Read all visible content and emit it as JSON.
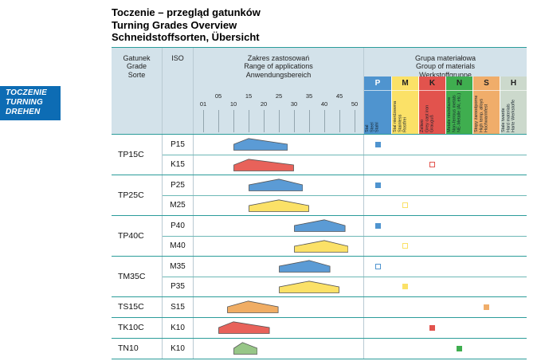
{
  "title_lines": [
    "Toczenie – przegląd gatunków",
    "Turning Grades Overview",
    "Schneidstoffsorten, Übersicht"
  ],
  "side_tab": {
    "lines": [
      "TOCZENIE",
      "TURNING",
      "DREHEN"
    ],
    "bg": "#0d6cb4"
  },
  "header": {
    "grade_lines": [
      "Gatunek",
      "Grade",
      "Sorte"
    ],
    "iso": "ISO",
    "range_lines": [
      "Zakres zastosowań",
      "Range of applications",
      "Anwendungsbereich"
    ],
    "materials_lines": [
      "Grupa materiałowa",
      "Group of materials",
      "Werkstoffgruppe"
    ]
  },
  "scale": {
    "values": [
      1,
      5,
      10,
      15,
      20,
      25,
      30,
      35,
      40,
      45,
      50
    ],
    "labels": [
      "01",
      "05",
      "10",
      "15",
      "20",
      "25",
      "30",
      "35",
      "40",
      "45",
      "50"
    ]
  },
  "material_columns": [
    {
      "code": "P",
      "color": "#4f94cf",
      "letter_color": "#ffffff",
      "label_lines": [
        "Stal",
        "Steel",
        "Stahl"
      ]
    },
    {
      "code": "M",
      "color": "#fbe167",
      "letter_color": "#222222",
      "label_lines": [
        "Stal nierdzewna",
        "Stainless",
        "Rostfrei"
      ]
    },
    {
      "code": "K",
      "color": "#e2534d",
      "letter_color": "#222222",
      "label_lines": [
        "Żeliwo",
        "Grey cast iron",
        "Grauguß"
      ]
    },
    {
      "code": "N",
      "color": "#3fae4f",
      "letter_color": "#222222",
      "label_lines": [
        "Metale nieżelazne",
        "Non-ferrous metals",
        "NE-Metalle (Al, etc.)"
      ]
    },
    {
      "code": "S",
      "color": "#f0ad6a",
      "letter_color": "#222222",
      "label_lines": [
        "Stopy żaroodporne",
        "High temp. alloys",
        "Hochwarmfest"
      ]
    },
    {
      "code": "H",
      "color": "#ccd9cc",
      "letter_color": "#222222",
      "label_lines": [
        "Stale twarde",
        "Hard materials",
        "Harte Werkstoffe"
      ]
    }
  ],
  "shape_colors": {
    "blue": "#5b9bd5",
    "red": "#e8625a",
    "yellow": "#fbe167",
    "orange": "#f0ad64",
    "green": "#97c687"
  },
  "palette": {
    "teal_line": "#2b9c9a",
    "header_bg": "#d3e2ea"
  },
  "grades": [
    {
      "grade": "TP15C",
      "subrows": [
        {
          "iso": "P15",
          "shape": {
            "from": 10,
            "to": 28,
            "peak": 15,
            "color": "blue"
          },
          "marker": {
            "col": "P",
            "style": "filled"
          }
        },
        {
          "iso": "K15",
          "shape": {
            "from": 10,
            "to": 30,
            "peak": 15,
            "color": "red"
          },
          "marker": {
            "col": "K",
            "style": "hollow"
          }
        }
      ]
    },
    {
      "grade": "TP25C",
      "subrows": [
        {
          "iso": "P25",
          "shape": {
            "from": 15,
            "to": 33,
            "peak": 25,
            "color": "blue"
          },
          "marker": {
            "col": "P",
            "style": "filled"
          }
        },
        {
          "iso": "M25",
          "shape": {
            "from": 15,
            "to": 35,
            "peak": 25,
            "color": "yellow"
          },
          "marker": {
            "col": "M",
            "style": "hollow"
          }
        }
      ]
    },
    {
      "grade": "TP40C",
      "subrows": [
        {
          "iso": "P40",
          "shape": {
            "from": 30,
            "to": 47,
            "peak": 40,
            "color": "blue"
          },
          "marker": {
            "col": "P",
            "style": "filled"
          }
        },
        {
          "iso": "M40",
          "shape": {
            "from": 30,
            "to": 48,
            "peak": 40,
            "color": "yellow"
          },
          "marker": {
            "col": "M",
            "style": "hollow"
          }
        }
      ]
    },
    {
      "grade": "TM35C",
      "subrows": [
        {
          "iso": "M35",
          "shape": {
            "from": 25,
            "to": 42,
            "peak": 35,
            "color": "blue"
          },
          "marker": {
            "col": "P",
            "style": "hollow"
          }
        },
        {
          "iso": "P35",
          "shape": {
            "from": 25,
            "to": 45,
            "peak": 35,
            "color": "yellow"
          },
          "marker": {
            "col": "M",
            "style": "filled"
          }
        }
      ]
    },
    {
      "grade": "TS15C",
      "subrows": [
        {
          "iso": "S15",
          "shape": {
            "from": 8,
            "to": 25,
            "peak": 15,
            "color": "orange"
          },
          "marker": {
            "col": "S",
            "style": "filled"
          }
        }
      ]
    },
    {
      "grade": "TK10C",
      "subrows": [
        {
          "iso": "K10",
          "shape": {
            "from": 5,
            "to": 22,
            "peak": 10,
            "color": "red"
          },
          "marker": {
            "col": "K",
            "style": "filled"
          }
        }
      ]
    },
    {
      "grade": "TN10",
      "subrows": [
        {
          "iso": "K10",
          "shape": {
            "from": 10,
            "to": 18,
            "peak": 13,
            "color": "green"
          },
          "marker": {
            "col": "N",
            "style": "filled"
          }
        }
      ]
    }
  ]
}
